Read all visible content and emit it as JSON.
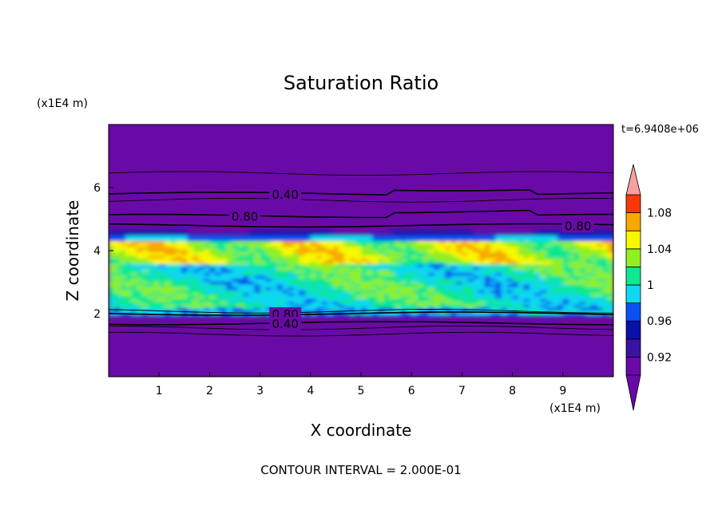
{
  "chart_data": {
    "type": "heatmap",
    "title": "Saturation Ratio",
    "xlabel": "X coordinate",
    "ylabel": "Z coordinate",
    "x_unit": "(x1E4 m)",
    "y_unit": "(x1E4 m)",
    "time_label": "t=6.9408e+06",
    "footer": "CONTOUR INTERVAL = 2.000E-01",
    "xlim": [
      0,
      10
    ],
    "ylim": [
      0,
      8
    ],
    "x_ticks": [
      "1",
      "2",
      "3",
      "4",
      "5",
      "6",
      "7",
      "8",
      "9"
    ],
    "y_ticks": [
      "2",
      "4",
      "6"
    ],
    "colorbar": {
      "levels": [
        0.9,
        0.92,
        0.94,
        0.96,
        0.98,
        1.0,
        1.02,
        1.04,
        1.06,
        1.08,
        1.1
      ],
      "tick_labels": [
        "0.92",
        "0.96",
        "1",
        "1.04",
        "1.08"
      ],
      "tick_values": [
        0.92,
        0.96,
        1.0,
        1.04,
        1.08
      ],
      "colors": [
        "#6a0aa6",
        "#3a12a6",
        "#0a10a8",
        "#0a50f0",
        "#10d8f0",
        "#10e890",
        "#90f020",
        "#f8f800",
        "#f8a800",
        "#f83808",
        "#f02020",
        "#f8a0a0"
      ],
      "under_color": "#6a0aa6",
      "over_color": "#f8a0a0"
    },
    "contour_lines": [
      {
        "label": "0.40",
        "z": 5.8
      },
      {
        "label": "0.80",
        "z": 5.1
      },
      {
        "label": "0.80",
        "z": 4.8
      },
      {
        "label": "0.80",
        "z": 2.0
      },
      {
        "label": "0.40",
        "z": 1.7
      }
    ]
  }
}
